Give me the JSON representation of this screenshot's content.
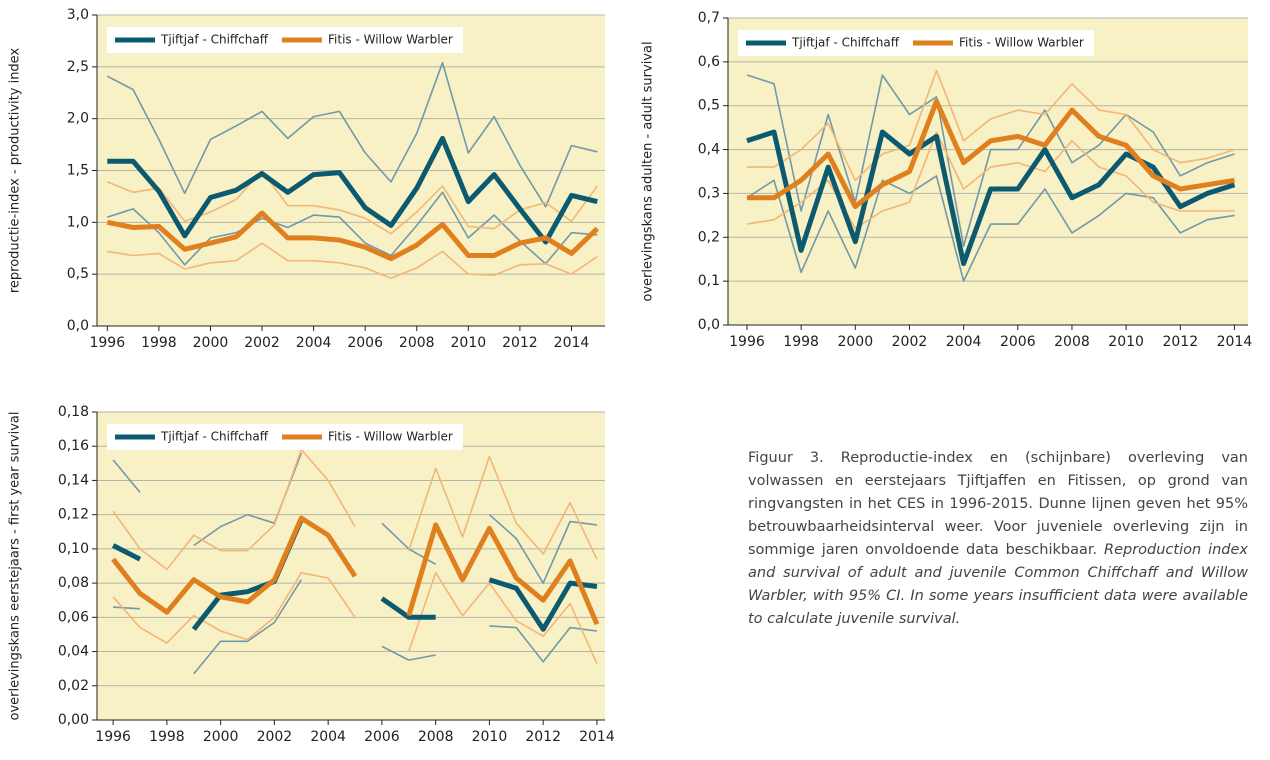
{
  "chart_data": [
    {
      "type": "line",
      "ylabel": "reproductie-index - productivity index",
      "background": "#f8f1c6",
      "grid": true,
      "legend": "upper left",
      "x": [
        1996,
        1997,
        1998,
        1999,
        2000,
        2001,
        2002,
        2003,
        2004,
        2005,
        2006,
        2007,
        2008,
        2009,
        2010,
        2011,
        2012,
        2013,
        2014,
        2015
      ],
      "xlim": [
        1995.6,
        2015.3
      ],
      "xticks": [
        1996,
        1998,
        2000,
        2002,
        2004,
        2006,
        2008,
        2010,
        2012,
        2014
      ],
      "ylim": [
        0,
        3
      ],
      "yticks": [
        {
          "value": 0,
          "label": "0,0"
        },
        {
          "value": 0.5,
          "label": "0,5"
        },
        {
          "value": 1,
          "label": "1,0"
        },
        {
          "value": 1.5,
          "label": "1,5"
        },
        {
          "value": 2,
          "label": "2,0"
        },
        {
          "value": 2.5,
          "label": "2,5"
        },
        {
          "value": 3,
          "label": "3,0"
        }
      ],
      "series": [
        {
          "name": "Tjiftjaf - Chiffchaff",
          "color": "#0b5a70",
          "ci_color": "#7199a8",
          "values": [
            1.59,
            1.59,
            1.3,
            0.87,
            1.24,
            1.31,
            1.47,
            1.29,
            1.46,
            1.48,
            1.14,
            0.97,
            1.33,
            1.81,
            1.2,
            1.46,
            1.13,
            0.81,
            1.26,
            1.2
          ],
          "upper": [
            2.41,
            2.28,
            1.8,
            1.28,
            1.8,
            1.93,
            2.07,
            1.81,
            2.02,
            2.07,
            1.67,
            1.39,
            1.86,
            2.54,
            1.67,
            2.02,
            1.55,
            1.15,
            1.74,
            1.68
          ],
          "lower": [
            1.05,
            1.13,
            0.9,
            0.59,
            0.85,
            0.9,
            1.04,
            0.95,
            1.07,
            1.05,
            0.8,
            0.68,
            0.97,
            1.29,
            0.85,
            1.07,
            0.82,
            0.6,
            0.9,
            0.88
          ]
        },
        {
          "name": "Fitis - Willow Warbler",
          "color": "#e07f1e",
          "ci_color": "#f2b676",
          "values": [
            1.0,
            0.95,
            0.96,
            0.74,
            0.8,
            0.86,
            1.09,
            0.85,
            0.85,
            0.83,
            0.76,
            0.65,
            0.78,
            0.98,
            0.68,
            0.68,
            0.8,
            0.85,
            0.7,
            0.94
          ],
          "upper": [
            1.39,
            1.29,
            1.33,
            1.01,
            1.1,
            1.22,
            1.5,
            1.16,
            1.16,
            1.12,
            1.04,
            0.89,
            1.1,
            1.35,
            0.96,
            0.94,
            1.12,
            1.19,
            1.01,
            1.35
          ],
          "lower": [
            0.72,
            0.68,
            0.7,
            0.55,
            0.61,
            0.63,
            0.8,
            0.63,
            0.63,
            0.61,
            0.56,
            0.46,
            0.56,
            0.72,
            0.5,
            0.49,
            0.59,
            0.6,
            0.5,
            0.67
          ]
        }
      ]
    },
    {
      "type": "line",
      "ylabel": "overlevingskans adulten - adult survival",
      "background": "#f8f1c6",
      "grid": true,
      "legend": "upper left",
      "x": [
        1996,
        1997,
        1998,
        1999,
        2000,
        2001,
        2002,
        2003,
        2004,
        2005,
        2006,
        2007,
        2008,
        2009,
        2010,
        2011,
        2012,
        2013,
        2014
      ],
      "xlim": [
        1995.3,
        2014.5
      ],
      "xticks": [
        1996,
        1998,
        2000,
        2002,
        2004,
        2006,
        2008,
        2010,
        2012,
        2014
      ],
      "ylim": [
        0,
        0.7
      ],
      "yticks": [
        {
          "value": 0,
          "label": "0,0"
        },
        {
          "value": 0.1,
          "label": "0,1"
        },
        {
          "value": 0.2,
          "label": "0,2"
        },
        {
          "value": 0.3,
          "label": "0,3"
        },
        {
          "value": 0.4,
          "label": "0,4"
        },
        {
          "value": 0.5,
          "label": "0,5"
        },
        {
          "value": 0.6,
          "label": "0,6"
        },
        {
          "value": 0.7,
          "label": "0,7"
        }
      ],
      "series": [
        {
          "name": "Tjiftjaf - Chiffchaff",
          "color": "#0b5a70",
          "ci_color": "#7199a8",
          "values": [
            0.42,
            0.44,
            0.17,
            0.36,
            0.19,
            0.44,
            0.39,
            0.43,
            0.14,
            0.31,
            0.31,
            0.4,
            0.29,
            0.32,
            0.39,
            0.36,
            0.27,
            0.3,
            0.32
          ],
          "upper": [
            0.57,
            0.55,
            0.26,
            0.48,
            0.28,
            0.57,
            0.48,
            0.52,
            0.18,
            0.4,
            0.4,
            0.49,
            0.37,
            0.41,
            0.48,
            0.44,
            0.34,
            0.37,
            0.39
          ],
          "lower": [
            0.29,
            0.33,
            0.12,
            0.26,
            0.13,
            0.33,
            0.3,
            0.34,
            0.1,
            0.23,
            0.23,
            0.31,
            0.21,
            0.25,
            0.3,
            0.29,
            0.21,
            0.24,
            0.25
          ]
        },
        {
          "name": "Fitis - Willow Warbler",
          "color": "#e07f1e",
          "ci_color": "#f2b676",
          "values": [
            0.29,
            0.29,
            0.33,
            0.39,
            0.27,
            0.32,
            0.35,
            0.51,
            0.37,
            0.42,
            0.43,
            0.41,
            0.49,
            0.43,
            0.41,
            0.34,
            0.31,
            0.32,
            0.33
          ],
          "upper": [
            0.36,
            0.36,
            0.4,
            0.46,
            0.33,
            0.39,
            0.41,
            0.58,
            0.42,
            0.47,
            0.49,
            0.48,
            0.55,
            0.49,
            0.48,
            0.4,
            0.37,
            0.38,
            0.4
          ],
          "lower": [
            0.23,
            0.24,
            0.28,
            0.33,
            0.22,
            0.26,
            0.28,
            0.44,
            0.31,
            0.36,
            0.37,
            0.35,
            0.42,
            0.36,
            0.34,
            0.28,
            0.26,
            0.26,
            0.26
          ]
        }
      ]
    },
    {
      "type": "line",
      "ylabel": "overlevingskans eerstejaars - first year survival",
      "background": "#f8f1c6",
      "grid": true,
      "legend": "upper left",
      "x": [
        1996,
        1997,
        1998,
        1999,
        2000,
        2001,
        2002,
        2003,
        2004,
        2005,
        2006,
        2007,
        2008,
        2009,
        2010,
        2011,
        2012,
        2013,
        2014
      ],
      "xlim": [
        1995.4,
        2014.3
      ],
      "xticks": [
        1996,
        1998,
        2000,
        2002,
        2004,
        2006,
        2008,
        2010,
        2012,
        2014
      ],
      "ylim": [
        0,
        0.18
      ],
      "yticks": [
        {
          "value": 0,
          "label": "0,00"
        },
        {
          "value": 0.02,
          "label": "0,02"
        },
        {
          "value": 0.04,
          "label": "0,04"
        },
        {
          "value": 0.06,
          "label": "0,06"
        },
        {
          "value": 0.08,
          "label": "0,08"
        },
        {
          "value": 0.1,
          "label": "0,10"
        },
        {
          "value": 0.12,
          "label": "0,12"
        },
        {
          "value": 0.14,
          "label": "0,14"
        },
        {
          "value": 0.16,
          "label": "0,16"
        },
        {
          "value": 0.18,
          "label": "0,18"
        }
      ],
      "series": [
        {
          "name": "Tjiftjaf - Chiffchaff",
          "color": "#0b5a70",
          "ci_color": "#7199a8",
          "values": [
            0.102,
            0.094,
            null,
            0.053,
            0.073,
            0.075,
            0.081,
            0.117,
            null,
            null,
            0.071,
            0.06,
            0.06,
            null,
            0.082,
            0.077,
            0.053,
            0.08,
            0.078
          ],
          "upper": [
            0.152,
            0.133,
            null,
            0.102,
            0.113,
            0.12,
            0.115,
            0.156,
            null,
            null,
            0.115,
            0.1,
            0.091,
            null,
            0.12,
            0.106,
            0.08,
            0.116,
            0.114
          ],
          "lower": [
            0.066,
            0.065,
            null,
            0.027,
            0.046,
            0.046,
            0.057,
            0.082,
            null,
            null,
            0.043,
            0.035,
            0.038,
            null,
            0.055,
            0.054,
            0.034,
            0.054,
            0.052
          ]
        },
        {
          "name": "Fitis - Willow Warbler",
          "color": "#e07f1e",
          "ci_color": "#f2b676",
          "values": [
            0.094,
            0.074,
            0.063,
            0.082,
            0.072,
            0.069,
            0.082,
            0.118,
            0.108,
            0.084,
            null,
            0.061,
            0.114,
            0.082,
            0.112,
            0.083,
            0.07,
            0.093,
            0.056
          ],
          "upper": [
            0.122,
            0.1,
            0.088,
            0.108,
            0.099,
            0.099,
            0.114,
            0.158,
            0.14,
            0.113,
            null,
            0.099,
            0.147,
            0.107,
            0.154,
            0.115,
            0.097,
            0.127,
            0.094
          ],
          "lower": [
            0.072,
            0.054,
            0.045,
            0.061,
            0.052,
            0.047,
            0.06,
            0.086,
            0.083,
            0.06,
            null,
            0.04,
            0.086,
            0.061,
            0.08,
            0.058,
            0.049,
            0.068,
            0.033
          ]
        }
      ]
    }
  ],
  "caption": {
    "nl": "Figuur 3. Reproductie-index en (schijnbare) overleving van volwassen en eerstejaars Tjiftjaffen en Fitissen, op grond van ringvangsten in het CES in 1996-2015. Dunne lijnen geven het 95% betrouwbaarheidsinterval weer. Voor juveniele overleving zijn in sommige jaren onvoldoende data beschikbaar.",
    "en": "Reproduction index and survival of adult and juvenile Common Chiffchaff and Willow Warbler, with 95% CI. In some years insufficient data were available to calculate juvenile survival."
  }
}
